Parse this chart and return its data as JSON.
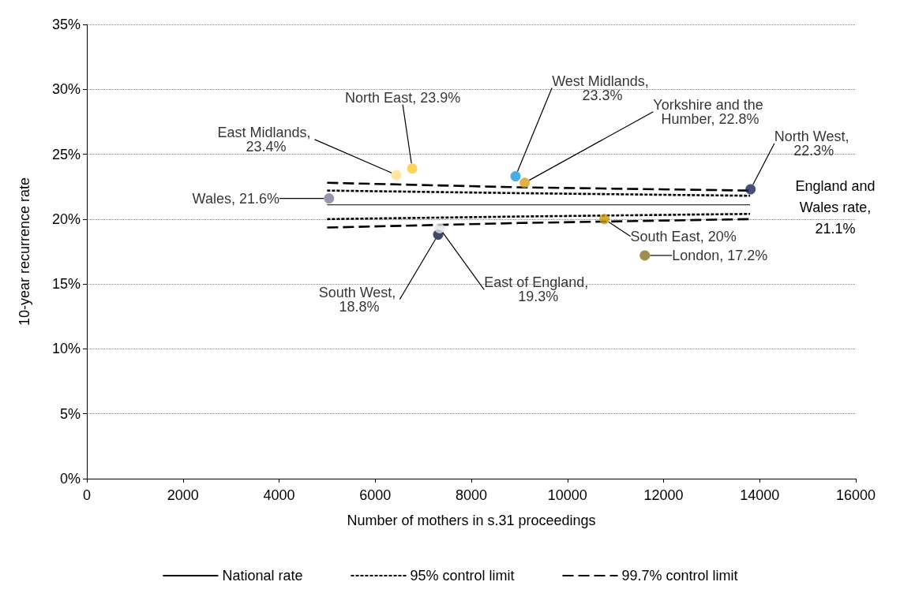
{
  "chart_data": {
    "type": "scatter",
    "xlabel": "Number of mothers in s.31 proceedings",
    "ylabel": "10-year recurrence rate",
    "xlim": [
      0,
      16000
    ],
    "xticks": [
      0,
      2000,
      4000,
      6000,
      8000,
      10000,
      12000,
      14000,
      16000
    ],
    "ylim": [
      0,
      35
    ],
    "yticks": [
      {
        "value": 0,
        "label": "0%"
      },
      {
        "value": 5,
        "label": "5%"
      },
      {
        "value": 10,
        "label": "10%"
      },
      {
        "value": 15,
        "label": "15%"
      },
      {
        "value": 20,
        "label": "20%"
      },
      {
        "value": 25,
        "label": "25%"
      },
      {
        "value": 30,
        "label": "30%"
      },
      {
        "value": 35,
        "label": "35%"
      }
    ],
    "grid": "y",
    "legend": "bottom",
    "marker": "circle",
    "annotations": [
      "England and Wales rate, 21.1%"
    ],
    "series": [
      {
        "x": [
          5040,
          6440,
          6770,
          8920,
          9110,
          7310,
          7340,
          13810,
          10770,
          11610
        ],
        "values": [
          21.6,
          23.4,
          23.9,
          23.3,
          22.8,
          18.8,
          19.3,
          22.3,
          20,
          17.2
        ],
        "colors": [
          "#7f7a9e",
          "#ffe08a",
          "#fdc82f",
          "#1a9be0",
          "#d4a017",
          "#141a40",
          "#e2e2ea",
          "#1b2258",
          "#c8980a",
          "#8a7020"
        ],
        "value_labels": [
          "Wales, 21.6%",
          "East Midlands, 23.4%",
          "North East, 23.9%",
          "West Midlands, 23.3%",
          "Yorkshire and the Humber, 22.8%",
          "South West, 18.8%",
          "East of England, 19.3%",
          "North West, 22.3%",
          "South East, 20%",
          "London, 17.2%"
        ]
      },
      {
        "type": "line",
        "name": "National rate",
        "color": "#000000",
        "line_style": "solid",
        "marker": "none",
        "x": [
          5000,
          13800
        ],
        "values": [
          21.1,
          21.1
        ]
      },
      {
        "type": "line",
        "name": "95% control limit",
        "color": "#000000",
        "line_style": "dotted",
        "marker": "none",
        "x": [
          5000,
          9000,
          13800
        ],
        "values": [
          22.2,
          22.0,
          21.8
        ]
      },
      {
        "type": "line",
        "color": "#000000",
        "line_style": "dotted",
        "marker": "none",
        "x": [
          5000,
          9000,
          13800
        ],
        "values": [
          20.0,
          20.2,
          20.4
        ]
      },
      {
        "type": "line",
        "name": "99.7% control limit",
        "color": "#000000",
        "line_style": "dashed",
        "marker": "none",
        "x": [
          5000,
          9000,
          13800
        ],
        "values": [
          22.8,
          22.45,
          22.2
        ]
      },
      {
        "type": "line",
        "color": "#000000",
        "line_style": "dashed",
        "marker": "none",
        "x": [
          5000,
          9000,
          13800
        ],
        "values": [
          19.35,
          19.7,
          20.0
        ]
      }
    ]
  }
}
